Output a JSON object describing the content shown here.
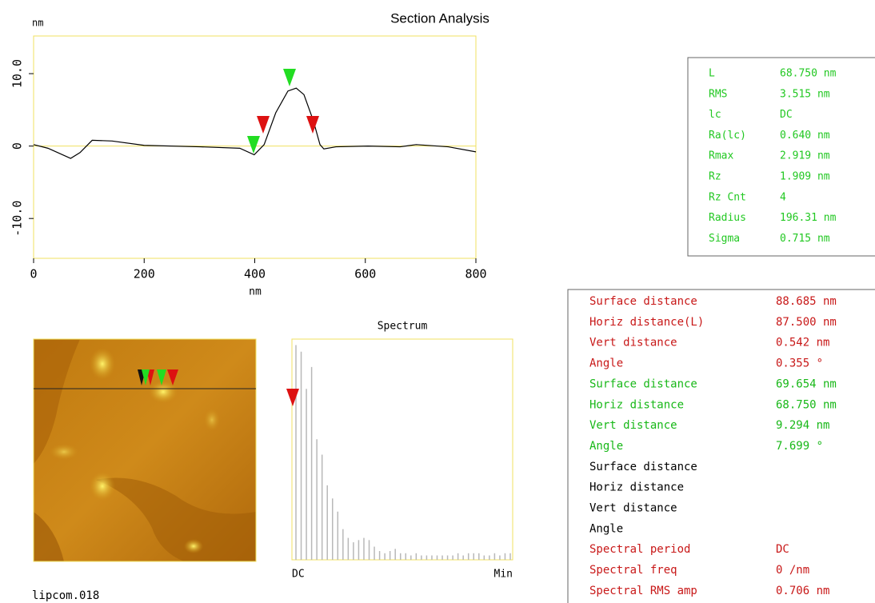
{
  "chart_data": [
    {
      "type": "line",
      "title": "Section Analysis",
      "y_unit": "nm",
      "x_label": "nm",
      "x": [
        0,
        26,
        67,
        84,
        106,
        142,
        200,
        301,
        373,
        399,
        417,
        438,
        460,
        475,
        489,
        506,
        518,
        525,
        547,
        605,
        663,
        692,
        750,
        800
      ],
      "series": [
        {
          "color": "#000000",
          "values": [
            0.2,
            -0.3,
            -1.7,
            -0.9,
            0.8,
            0.7,
            0.1,
            -0.1,
            -0.3,
            -1.2,
            0.2,
            4.6,
            7.6,
            8.0,
            7.1,
            3.5,
            0.2,
            -0.4,
            -0.1,
            0,
            -0.1,
            0.2,
            -0.1,
            -0.8
          ]
        }
      ],
      "xlim": [
        0,
        800
      ],
      "xticks": [
        0,
        200,
        400,
        600,
        800
      ],
      "ylim": [
        -15.5,
        15.2
      ],
      "yticks": [
        {
          "value": 10,
          "label": "10.0"
        },
        0,
        {
          "value": -10,
          "label": "-10.0"
        }
      ],
      "color": "#f0e060"
    },
    {
      "type": "bar",
      "title": "Spectrum",
      "color": "#b8b8b8",
      "categories": [
        "DC",
        null,
        null,
        null,
        null,
        null,
        null,
        null,
        null,
        null,
        null,
        null,
        null,
        null,
        null,
        null,
        null,
        null,
        null,
        null,
        null,
        null,
        null,
        null,
        null,
        null,
        null,
        null,
        null,
        null,
        null,
        null,
        null,
        null,
        null,
        null,
        null,
        null,
        null,
        null,
        null,
        "Min"
      ],
      "values": [
        98,
        95,
        78,
        88,
        55,
        48,
        34,
        28,
        22,
        14,
        10,
        8,
        9,
        10,
        9,
        6,
        4,
        3,
        4,
        5,
        3,
        3,
        2,
        3,
        2,
        2,
        2,
        2,
        2,
        2,
        2,
        3,
        2,
        3,
        3,
        3,
        2,
        2,
        3,
        2,
        3,
        3
      ],
      "ylim": [
        0,
        100
      ]
    }
  ],
  "image": {
    "filename": "lipcom.018"
  },
  "stats": [
    [
      "L",
      "68.750 nm"
    ],
    [
      "RMS",
      "3.515 nm"
    ],
    [
      "lc",
      "DC"
    ],
    [
      "Ra(lc)",
      "0.640 nm"
    ],
    [
      "Rmax",
      "2.919 nm"
    ],
    [
      "Rz",
      "1.909 nm"
    ],
    [
      "Rz Cnt",
      "4"
    ],
    [
      "Radius",
      "196.31 nm"
    ],
    [
      "Sigma",
      "0.715 nm"
    ]
  ],
  "measurements": [
    {
      "color": "#c81818",
      "rows": [
        [
          "Surface distance",
          "88.685 nm"
        ],
        [
          "Horiz distance(L)",
          "87.500 nm"
        ],
        [
          "Vert distance",
          "0.542 nm"
        ],
        [
          "Angle",
          "0.355 °"
        ]
      ]
    },
    {
      "color": "#18b818",
      "rows": [
        [
          "Surface distance",
          "69.654 nm"
        ],
        [
          "Horiz distance",
          "68.750 nm"
        ],
        [
          "Vert distance",
          "9.294 nm"
        ],
        [
          "Angle",
          "7.699 °"
        ]
      ]
    },
    {
      "color": "#000000",
      "rows": [
        [
          "Surface distance"
        ],
        [
          "Horiz distance"
        ],
        [
          "Vert distance"
        ],
        [
          "Angle"
        ]
      ]
    },
    {
      "color": "#c81818",
      "rows": [
        [
          "Spectral period",
          "DC"
        ],
        [
          "Spectral freq",
          "0 /nm"
        ],
        [
          "Spectral RMS amp",
          "0.706 nm"
        ]
      ]
    }
  ]
}
